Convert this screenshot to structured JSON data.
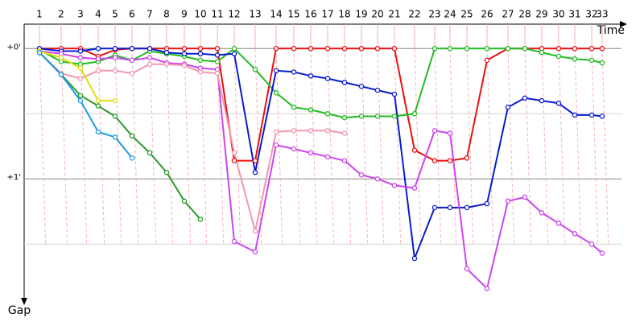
{
  "chart_data": {
    "type": "line",
    "x_label": "Time",
    "y_label": "Gap",
    "xlim": [
      0,
      3040
    ],
    "xticks": [
      {
        "value": 76,
        "label": "1"
      },
      {
        "value": 184,
        "label": "2"
      },
      {
        "value": 280,
        "label": "3"
      },
      {
        "value": 368,
        "label": "4"
      },
      {
        "value": 452,
        "label": "5"
      },
      {
        "value": 536,
        "label": "6"
      },
      {
        "value": 624,
        "label": "7"
      },
      {
        "value": 708,
        "label": "8"
      },
      {
        "value": 796,
        "label": "9"
      },
      {
        "value": 876,
        "label": "10"
      },
      {
        "value": 960,
        "label": "11"
      },
      {
        "value": 1044,
        "label": "12"
      },
      {
        "value": 1148,
        "label": "13"
      },
      {
        "value": 1252,
        "label": "14"
      },
      {
        "value": 1340,
        "label": "15"
      },
      {
        "value": 1424,
        "label": "16"
      },
      {
        "value": 1508,
        "label": "17"
      },
      {
        "value": 1592,
        "label": "18"
      },
      {
        "value": 1676,
        "label": "19"
      },
      {
        "value": 1756,
        "label": "20"
      },
      {
        "value": 1840,
        "label": "21"
      },
      {
        "value": 1940,
        "label": "22"
      },
      {
        "value": 2040,
        "label": "23"
      },
      {
        "value": 2116,
        "label": "24"
      },
      {
        "value": 2200,
        "label": "25"
      },
      {
        "value": 2300,
        "label": "26"
      },
      {
        "value": 2404,
        "label": "27"
      },
      {
        "value": 2488,
        "label": "28"
      },
      {
        "value": 2572,
        "label": "29"
      },
      {
        "value": 2656,
        "label": "30"
      },
      {
        "value": 2736,
        "label": "31"
      },
      {
        "value": 2820,
        "label": "32"
      },
      {
        "value": 2872,
        "label": "33"
      }
    ],
    "ylim": [
      -0.15,
      1.9
    ],
    "yticks": [
      {
        "value": 0,
        "label": "+0'"
      },
      {
        "value": 0.5,
        "label": null
      },
      {
        "value": 1,
        "label": "+1'"
      },
      {
        "value": 1.5,
        "label": null
      }
    ],
    "grid": true,
    "lap_line_color": "#f4a0a0",
    "series": [
      {
        "name": "Red",
        "color": "#e81010",
        "values": [
          0,
          0,
          0,
          0.06,
          0.01,
          0,
          0,
          0,
          0,
          0,
          0,
          0.86,
          0.86,
          0,
          0,
          0,
          0,
          0,
          0,
          0,
          0,
          0.78,
          0.86,
          0.86,
          0.84,
          0.09,
          0,
          0,
          0,
          0,
          0,
          0,
          0
        ]
      },
      {
        "name": "Green",
        "color": "#22bb22",
        "values": [
          0.01,
          0.1,
          0.12,
          0.1,
          0.05,
          0.09,
          0.02,
          0.04,
          0.06,
          0.09,
          0.1,
          0,
          0.16,
          0.34,
          0.45,
          0.47,
          0.5,
          0.53,
          0.52,
          0.52,
          0.52,
          0.5,
          0,
          0,
          0,
          0,
          0,
          0,
          0.03,
          0.06,
          0.08,
          0.09,
          0.11
        ]
      },
      {
        "name": "Blue",
        "color": "#0a1ccc",
        "values": [
          0,
          0.02,
          0.02,
          0,
          0,
          0,
          0,
          0.03,
          0.04,
          0.04,
          0.05,
          0.04,
          0.95,
          0.17,
          0.18,
          0.21,
          0.23,
          0.26,
          0.29,
          0.32,
          0.35,
          1.61,
          1.22,
          1.22,
          1.22,
          1.19,
          0.45,
          0.38,
          0.4,
          0.42,
          0.51,
          0.51,
          0.52
        ]
      },
      {
        "name": "Violet",
        "color": "#cc44ee",
        "values": [
          0.02,
          0.04,
          0.07,
          0.08,
          0.07,
          0.09,
          0.07,
          0.11,
          0.12,
          0.15,
          0.16,
          1.48,
          1.56,
          0.74,
          0.77,
          0.8,
          0.83,
          0.86,
          0.97,
          1.0,
          1.05,
          1.07,
          0.63,
          0.65,
          1.69,
          1.84,
          1.17,
          1.14,
          1.26,
          1.34,
          1.42,
          1.5,
          1.57
        ]
      },
      {
        "name": "Pink",
        "color": "#f098b0",
        "values": [
          0.03,
          0.19,
          0.23,
          0.17,
          0.17,
          0.19,
          0.12,
          0.12,
          0.13,
          0.18,
          0.19,
          0.8,
          1.4,
          0.64,
          0.63,
          0.63,
          0.63,
          0.65,
          null,
          null,
          null,
          null,
          null,
          null,
          null,
          null,
          null,
          null,
          null,
          null,
          null,
          null,
          null
        ]
      },
      {
        "name": "Yellow",
        "color": "#dddd10",
        "values": [
          0.02,
          0.07,
          0.15,
          0.4,
          0.4,
          null,
          null,
          null,
          null,
          null,
          null,
          null,
          null,
          null,
          null,
          null,
          null,
          null,
          null,
          null,
          null,
          null,
          null,
          null,
          null,
          null,
          null,
          null,
          null,
          null,
          null,
          null,
          null
        ]
      },
      {
        "name": "Olive",
        "color": "#2a9a2a",
        "values": [
          0.03,
          0.2,
          0.36,
          0.44,
          0.52,
          0.67,
          0.8,
          0.95,
          1.17,
          1.31,
          null,
          null,
          null,
          null,
          null,
          null,
          null,
          null,
          null,
          null,
          null,
          null,
          null,
          null,
          null,
          null,
          null,
          null,
          null,
          null,
          null,
          null,
          null
        ]
      },
      {
        "name": "Sky",
        "color": "#1e9be8",
        "values": [
          0.03,
          0.2,
          0.4,
          0.64,
          0.68,
          0.84,
          null,
          null,
          null,
          null,
          null,
          null,
          null,
          null,
          null,
          null,
          null,
          null,
          null,
          null,
          null,
          null,
          null,
          null,
          null,
          null,
          null,
          null,
          null,
          null,
          null,
          null,
          null
        ]
      }
    ]
  }
}
